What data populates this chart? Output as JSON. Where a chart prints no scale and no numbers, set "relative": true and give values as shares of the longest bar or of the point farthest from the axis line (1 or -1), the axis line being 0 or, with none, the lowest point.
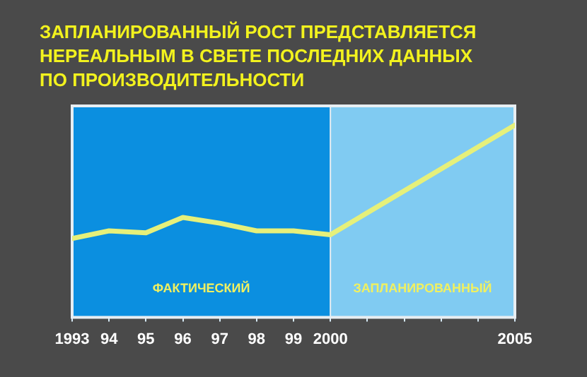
{
  "chart_data": {
    "type": "line",
    "title": "ЗАПЛАНИРОВАННЫЙ РОСТ ПРЕДСТАВЛЯЕТСЯ НЕРЕАЛЬНЫМ В СВЕТЕ ПОСЛЕДНИХ ДАННЫХ ПО ПРОИЗВОДИТЕЛЬНОСТИ",
    "x": [
      1993,
      1994,
      1995,
      1996,
      1997,
      1998,
      1999,
      2000,
      2005
    ],
    "series": [
      {
        "color": "#e6f07a",
        "values": [
          0.41,
          0.45,
          0.44,
          0.52,
          0.49,
          0.45,
          0.45,
          0.43,
          1
        ]
      }
    ],
    "relative": true,
    "xlim": [
      1993,
      2005
    ],
    "xticks": [
      1993,
      {
        "value": 1994,
        "label": "94"
      },
      {
        "value": 1995,
        "label": "95"
      },
      {
        "value": 1996,
        "label": "96"
      },
      {
        "value": 1997,
        "label": "97"
      },
      {
        "value": 1998,
        "label": "98"
      },
      {
        "value": 1999,
        "label": "99"
      },
      2000,
      {
        "value": 2001,
        "label": null
      },
      {
        "value": 2002,
        "label": null
      },
      {
        "value": 2003,
        "label": null
      },
      {
        "value": 2004,
        "label": null
      },
      2005
    ],
    "bands": [
      {
        "axis": "x",
        "from": 1993,
        "to": 2000,
        "label": "ФАКТИЧЕСКИЙ",
        "color": "#0b8fe0"
      },
      {
        "axis": "x",
        "from": 2000,
        "to": 2005,
        "label": "ЗАПЛАНИРОВАННЫЙ",
        "color": "#80cbf2"
      }
    ],
    "tick_labels": "x",
    "legend": false,
    "marker": "none"
  }
}
